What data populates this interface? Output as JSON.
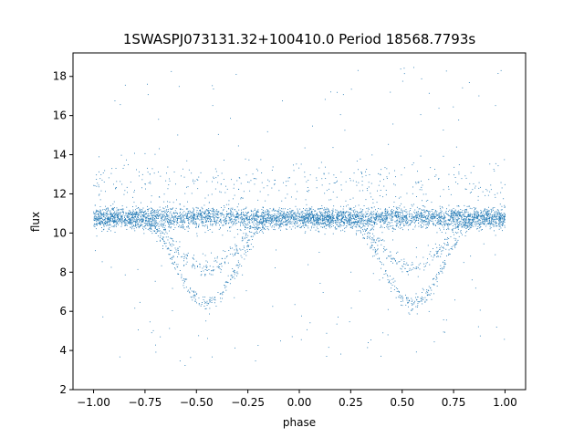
{
  "chart_data": {
    "type": "scatter",
    "title": "1SWASPJ073131.32+100410.0 Period 18568.7793s",
    "xlabel": "phase",
    "ylabel": "flux",
    "xlim": [
      -1.1,
      1.1
    ],
    "ylim": [
      2.0,
      19.2
    ],
    "grid": false,
    "legend": "none",
    "point_color": "#1f77b4",
    "x_ticks": [
      {
        "value": -1.0,
        "label": "−1.00"
      },
      {
        "value": -0.75,
        "label": "−0.75"
      },
      {
        "value": -0.5,
        "label": "−0.50"
      },
      {
        "value": -0.25,
        "label": "−0.25"
      },
      {
        "value": 0.0,
        "label": "0.00"
      },
      {
        "value": 0.25,
        "label": "0.25"
      },
      {
        "value": 0.5,
        "label": "0.50"
      },
      {
        "value": 0.75,
        "label": "0.75"
      },
      {
        "value": 1.0,
        "label": "1.00"
      }
    ],
    "y_ticks": [
      {
        "value": 2,
        "label": "2"
      },
      {
        "value": 4,
        "label": "4"
      },
      {
        "value": 6,
        "label": "6"
      },
      {
        "value": 8,
        "label": "8"
      },
      {
        "value": 10,
        "label": "10"
      },
      {
        "value": 12,
        "label": "12"
      },
      {
        "value": 14,
        "label": "14"
      },
      {
        "value": 16,
        "label": "16"
      },
      {
        "value": 18,
        "label": "18"
      }
    ],
    "series_summary": {
      "baseline_flux": 10.7,
      "upper_band_flux": 11.0,
      "dip_centers_phase": [
        -0.45,
        0.55
      ],
      "dip_half_width_phase": 0.32,
      "deep_dip_min_flux": 6.4,
      "shallow_dip_min_flux": 8.2,
      "phase_range": [
        -1.0,
        1.0
      ]
    }
  }
}
